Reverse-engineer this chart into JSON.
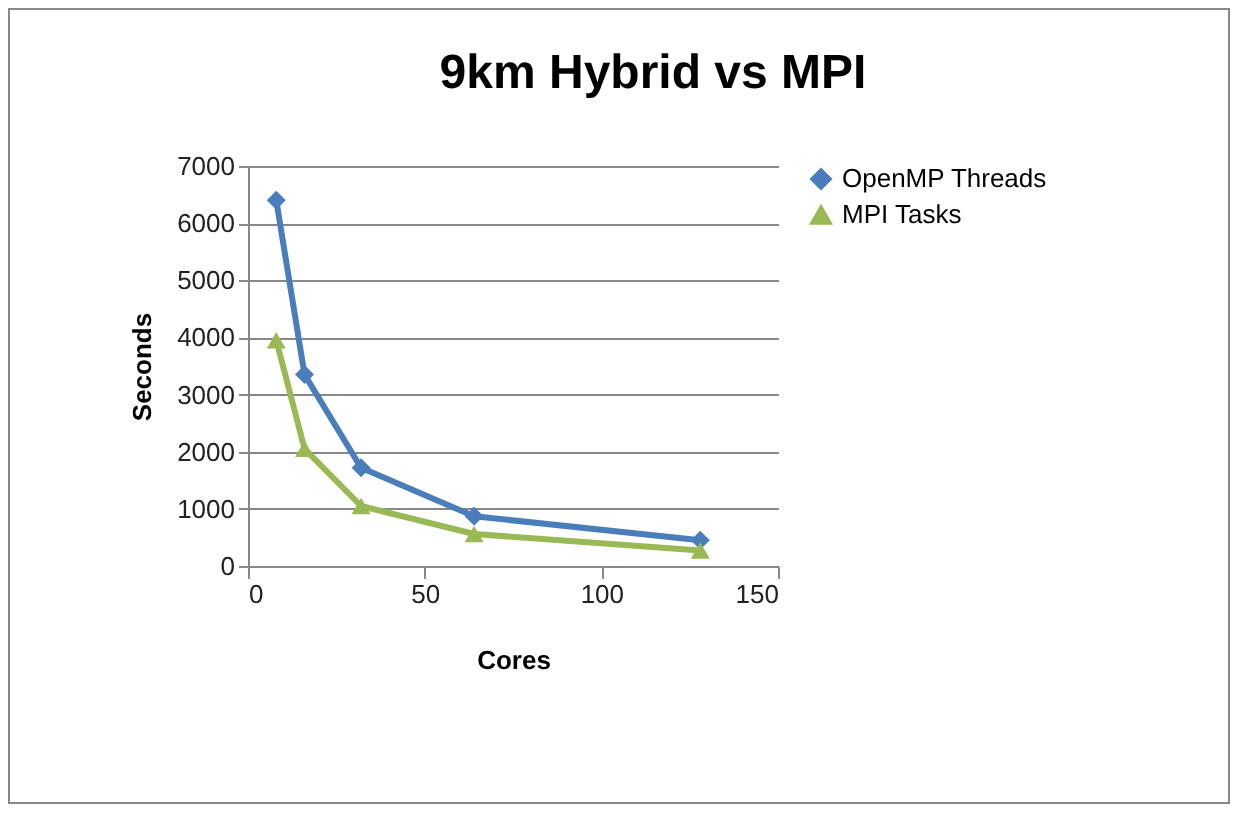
{
  "chart_data": {
    "type": "line",
    "title": "9km Hybrid vs MPI",
    "xlabel": "Cores",
    "ylabel": "Seconds",
    "x": [
      8,
      16,
      32,
      64,
      128
    ],
    "series": [
      {
        "name": "OpenMP Threads",
        "color": "#4a7ebb",
        "marker": "diamond",
        "values": [
          6400,
          3350,
          1720,
          870,
          450
        ]
      },
      {
        "name": "MPI Tasks",
        "color": "#98b954",
        "marker": "triangle",
        "values": [
          3950,
          2050,
          1050,
          560,
          270
        ]
      }
    ],
    "xlim": [
      0,
      150
    ],
    "xticks": [
      0,
      50,
      100,
      150
    ],
    "ylim": [
      0,
      7000
    ],
    "yticks": [
      0,
      1000,
      2000,
      3000,
      4000,
      5000,
      6000,
      7000
    ],
    "grid": "y",
    "legend": "right"
  }
}
